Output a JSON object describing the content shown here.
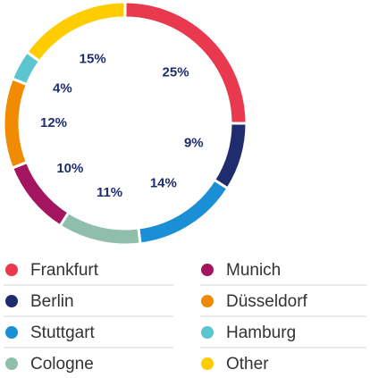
{
  "chart_data": {
    "type": "pie",
    "donut": true,
    "categories": [
      "Frankfurt",
      "Berlin",
      "Stuttgart",
      "Cologne",
      "Munich",
      "Düsseldorf",
      "Hamburg",
      "Other"
    ],
    "values": [
      25,
      9,
      14,
      11,
      10,
      12,
      4,
      15
    ],
    "value_labels": [
      "25%",
      "9%",
      "14%",
      "11%",
      "10%",
      "12%",
      "4%",
      "15%"
    ],
    "colors": [
      "#e8394f",
      "#1f2d6e",
      "#1a8fd6",
      "#8fbfaa",
      "#a3165f",
      "#f08a00",
      "#5bc5d0",
      "#ffcc00"
    ]
  }
}
